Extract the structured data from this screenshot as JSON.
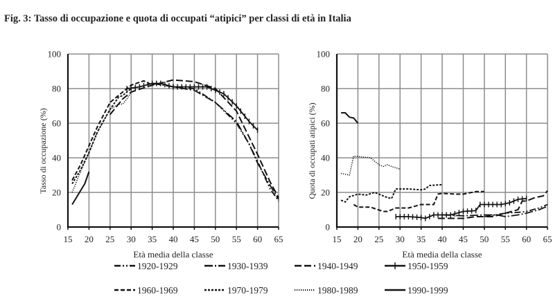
{
  "chart_data": [
    {
      "type": "line",
      "title": "Fig. 3: Tasso di occupazione e quota di occupati “atipici” per classi di età in Italia",
      "xlabel": "Età media della classe",
      "ylabel": "Tasso di occupazione (%)",
      "xlim": [
        15,
        65
      ],
      "ylim": [
        0,
        100
      ],
      "xticks": [
        "15",
        "20",
        "25",
        "30",
        "35",
        "40",
        "45",
        "50",
        "55",
        "60",
        "65"
      ],
      "yticks": [
        "0",
        "20",
        "40",
        "60",
        "80",
        "100"
      ],
      "grid": true,
      "series": [
        {
          "name": "1920-1929",
          "points": [
            [
              40,
              81
            ],
            [
              45,
              80
            ],
            [
              50,
              72
            ],
            [
              55,
              60
            ],
            [
              58,
              48
            ],
            [
              60,
              38
            ],
            [
              63,
              22
            ],
            [
              65,
              15
            ]
          ]
        },
        {
          "name": "1930-1939",
          "points": [
            [
              35,
              83
            ],
            [
              40,
              81
            ],
            [
              45,
              79
            ],
            [
              50,
              72
            ],
            [
              55,
              61
            ],
            [
              58,
              48
            ],
            [
              60,
              37
            ],
            [
              63,
              24
            ],
            [
              65,
              16
            ]
          ]
        },
        {
          "name": "1940-1949",
          "points": [
            [
              25,
              65
            ],
            [
              28,
              74
            ],
            [
              30,
              78
            ],
            [
              35,
              82
            ],
            [
              40,
              85
            ],
            [
              45,
              84
            ],
            [
              50,
              80
            ],
            [
              55,
              67
            ],
            [
              58,
              52
            ],
            [
              60,
              42
            ],
            [
              63,
              26
            ],
            [
              65,
              17
            ]
          ]
        },
        {
          "name": "1950-1959",
          "points": [
            [
              29,
              80
            ],
            [
              32,
              81
            ],
            [
              35,
              83
            ],
            [
              37,
              83
            ],
            [
              40,
              81
            ],
            [
              45,
              81
            ],
            [
              48,
              81
            ],
            [
              50,
              79
            ],
            [
              52,
              77
            ],
            [
              55,
              70
            ],
            [
              58,
              61
            ],
            [
              60,
              56
            ]
          ]
        },
        {
          "name": "1960-1969",
          "points": [
            [
              16,
              27
            ],
            [
              18,
              36
            ],
            [
              20,
              47
            ],
            [
              22,
              58
            ],
            [
              25,
              72
            ],
            [
              28,
              78
            ],
            [
              30,
              82
            ],
            [
              33,
              84.5
            ],
            [
              35,
              82
            ]
          ]
        },
        {
          "name": "1970-1979",
          "points": [
            [
              16,
              25
            ],
            [
              18,
              33
            ],
            [
              20,
              43
            ],
            [
              22,
              55
            ],
            [
              25,
              68
            ],
            [
              27,
              75
            ],
            [
              28,
              76
            ],
            [
              30,
              80
            ]
          ]
        },
        {
          "name": "1980-1989",
          "points": [
            [
              16,
              20
            ],
            [
              18,
              32
            ],
            [
              20,
              43
            ],
            [
              22,
              55
            ],
            [
              25,
              68
            ],
            [
              27,
              71
            ],
            [
              28,
              71
            ],
            [
              29,
              74
            ],
            [
              30,
              78
            ]
          ]
        },
        {
          "name": "1990-1999",
          "points": [
            [
              16,
              13
            ],
            [
              17,
              17
            ],
            [
              18,
              21
            ],
            [
              19,
              25
            ],
            [
              20,
              32
            ]
          ]
        }
      ]
    },
    {
      "type": "line",
      "xlabel": "Età media della classe",
      "ylabel": "Quota di occupati atipici (%)",
      "xlim": [
        15,
        65
      ],
      "ylim": [
        0,
        100
      ],
      "xticks": [
        "15",
        "20",
        "25",
        "30",
        "35",
        "40",
        "45",
        "50",
        "55",
        "60",
        "65"
      ],
      "yticks": [
        "0",
        "20",
        "40",
        "60",
        "80",
        "100"
      ],
      "grid": true,
      "series": [
        {
          "name": "1920-1929",
          "points": [
            [
              50,
              6
            ],
            [
              55,
              8
            ],
            [
              58,
              8.5
            ],
            [
              60,
              9
            ],
            [
              63,
              11
            ],
            [
              65,
              13
            ]
          ]
        },
        {
          "name": "1930-1939",
          "points": [
            [
              40,
              7
            ],
            [
              45,
              6.5
            ],
            [
              50,
              7
            ],
            [
              53,
              7
            ],
            [
              55,
              6
            ],
            [
              58,
              7
            ],
            [
              60,
              8
            ],
            [
              63,
              10
            ],
            [
              65,
              12
            ]
          ]
        },
        {
          "name": "1940-1949",
          "points": [
            [
              39,
              5
            ],
            [
              40,
              5
            ],
            [
              45,
              5
            ],
            [
              48,
              6
            ],
            [
              52,
              6
            ],
            [
              55,
              8
            ],
            [
              58,
              10
            ],
            [
              59,
              15
            ],
            [
              60,
              15
            ],
            [
              62,
              17
            ],
            [
              64,
              18
            ],
            [
              65,
              21
            ]
          ]
        },
        {
          "name": "1950-1959",
          "points": [
            [
              29,
              6
            ],
            [
              32,
              6
            ],
            [
              35,
              5.5
            ],
            [
              36,
              5
            ],
            [
              38,
              7
            ],
            [
              42,
              7
            ],
            [
              45,
              9
            ],
            [
              48,
              9.5
            ],
            [
              49,
              13
            ],
            [
              54,
              13
            ],
            [
              56,
              14
            ],
            [
              58,
              16
            ],
            [
              60,
              16.5
            ]
          ]
        },
        {
          "name": "1960-1969",
          "points": [
            [
              19,
              13
            ],
            [
              20,
              11.5
            ],
            [
              23,
              11.5
            ],
            [
              26,
              9
            ],
            [
              27,
              9
            ],
            [
              29,
              11
            ],
            [
              32,
              11
            ],
            [
              35,
              13
            ],
            [
              38,
              13
            ],
            [
              39,
              19
            ],
            [
              40,
              19.5
            ],
            [
              43,
              19
            ],
            [
              45,
              19
            ],
            [
              48,
              20.5
            ],
            [
              50,
              20.5
            ]
          ]
        },
        {
          "name": "1970-1979",
          "points": [
            [
              16,
              15.5
            ],
            [
              17,
              14.5
            ],
            [
              18,
              17.5
            ],
            [
              20,
              19
            ],
            [
              22,
              18.5
            ],
            [
              24,
              20
            ],
            [
              27,
              17
            ],
            [
              28,
              16.5
            ],
            [
              29,
              22
            ],
            [
              32,
              22
            ],
            [
              35,
              21.5
            ],
            [
              36,
              22
            ],
            [
              37,
              24
            ],
            [
              40,
              24.5
            ]
          ]
        },
        {
          "name": "1980-1989",
          "points": [
            [
              16,
              31
            ],
            [
              18,
              30
            ],
            [
              19,
              41
            ],
            [
              21,
              40.5
            ],
            [
              23,
              40
            ],
            [
              25,
              36
            ],
            [
              26,
              35
            ],
            [
              27,
              36
            ],
            [
              28,
              35
            ],
            [
              30,
              33.5
            ]
          ]
        },
        {
          "name": "1990-1999",
          "points": [
            [
              16,
              66
            ],
            [
              17,
              66
            ],
            [
              18,
              63.5
            ],
            [
              19,
              63
            ],
            [
              20,
              60
            ]
          ]
        }
      ]
    }
  ],
  "legend": [
    "1920-1929",
    "1930-1939",
    "1940-1949",
    "1950-1959",
    "1960-1969",
    "1970-1979",
    "1980-1989",
    "1990-1999"
  ],
  "colors": {
    "line": "#111111",
    "grid": "#8c8c8c"
  }
}
